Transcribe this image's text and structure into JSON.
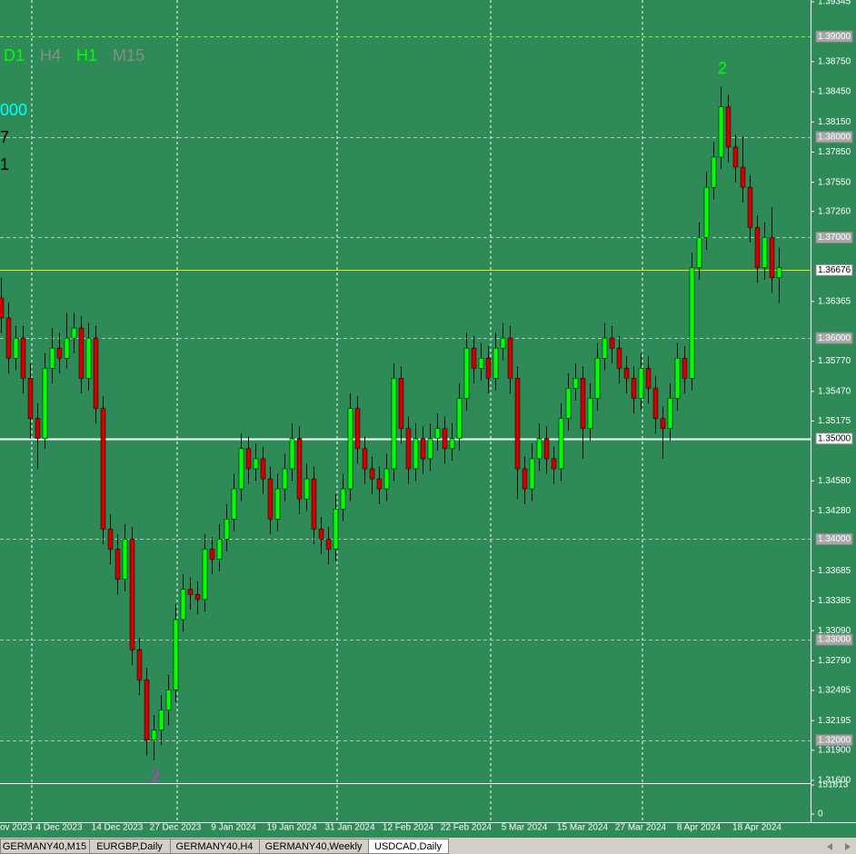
{
  "chart_data": {
    "type": "candlestick",
    "timeframes": [
      {
        "text": "D1",
        "color": "#00ff00"
      },
      {
        "text": "H4",
        "color": "#8a8a8a"
      },
      {
        "text": "H1",
        "color": "#00ff00"
      },
      {
        "text": "M15",
        "color": "#8a8a8a"
      }
    ],
    "side_texts": [
      {
        "text": "000",
        "color": "#00ffff"
      },
      {
        "text": "7",
        "color": "#000000"
      },
      {
        "text": "1",
        "color": "#000000"
      }
    ],
    "annotations": [
      {
        "text": "2",
        "color": "#00ff00"
      },
      {
        "text": "2",
        "color": "#cc33cc"
      }
    ],
    "categories": [
      "ov 2023",
      null,
      null,
      null,
      null,
      null,
      null,
      null,
      "4 Dec 2023",
      null,
      null,
      null,
      null,
      null,
      null,
      null,
      "14 Dec 2023",
      null,
      null,
      null,
      null,
      null,
      null,
      null,
      "27 Dec 2023",
      null,
      null,
      null,
      null,
      null,
      null,
      null,
      "9 Jan 2024",
      null,
      null,
      null,
      null,
      null,
      null,
      null,
      "19 Jan 2024",
      null,
      null,
      null,
      null,
      null,
      null,
      null,
      "31 Jan 2024",
      null,
      null,
      null,
      null,
      null,
      null,
      null,
      "12 Feb 2024",
      null,
      null,
      null,
      null,
      null,
      null,
      null,
      "22 Feb 2024",
      null,
      null,
      null,
      null,
      null,
      null,
      null,
      "5 Mar 2024",
      null,
      null,
      null,
      null,
      null,
      null,
      null,
      "15 Mar 2024",
      null,
      null,
      null,
      null,
      null,
      null,
      null,
      "27 Mar 2024",
      null,
      null,
      null,
      null,
      null,
      null,
      null,
      "8 Apr 2024",
      null,
      null,
      null,
      null,
      null,
      null,
      null,
      "18 Apr 2024",
      null,
      null,
      null
    ],
    "ohlc": [
      [
        1.364,
        1.366,
        1.3605,
        1.362
      ],
      [
        1.362,
        1.3635,
        1.3565,
        1.358
      ],
      [
        1.358,
        1.3612,
        1.3568,
        1.36
      ],
      [
        1.36,
        1.3612,
        1.3545,
        1.356
      ],
      [
        1.356,
        1.3575,
        1.35,
        1.352
      ],
      [
        1.352,
        1.3535,
        1.347,
        1.35
      ],
      [
        1.35,
        1.3585,
        1.349,
        1.357
      ],
      [
        1.357,
        1.361,
        1.3555,
        1.359
      ],
      [
        1.359,
        1.3605,
        1.3565,
        1.358
      ],
      [
        1.358,
        1.3625,
        1.357,
        1.36
      ],
      [
        1.36,
        1.3625,
        1.3585,
        1.361
      ],
      [
        1.361,
        1.3622,
        1.3545,
        1.356
      ],
      [
        1.356,
        1.3615,
        1.3548,
        1.36
      ],
      [
        1.36,
        1.3612,
        1.3515,
        1.353
      ],
      [
        1.353,
        1.3542,
        1.3395,
        1.341
      ],
      [
        1.341,
        1.3425,
        1.3375,
        1.339
      ],
      [
        1.339,
        1.3405,
        1.3345,
        1.336
      ],
      [
        1.336,
        1.3415,
        1.3348,
        1.34
      ],
      [
        1.34,
        1.3412,
        1.3275,
        1.329
      ],
      [
        1.329,
        1.3302,
        1.3245,
        1.326
      ],
      [
        1.326,
        1.3272,
        1.3185,
        1.32
      ],
      [
        1.32,
        1.3225,
        1.318,
        1.321
      ],
      [
        1.321,
        1.3245,
        1.3195,
        1.323
      ],
      [
        1.323,
        1.3265,
        1.3215,
        1.325
      ],
      [
        1.325,
        1.3335,
        1.3238,
        1.332
      ],
      [
        1.332,
        1.3365,
        1.3308,
        1.335
      ],
      [
        1.335,
        1.3362,
        1.333,
        1.3345
      ],
      [
        1.3345,
        1.3358,
        1.3325,
        1.334
      ],
      [
        1.334,
        1.3405,
        1.3328,
        1.339
      ],
      [
        1.339,
        1.3402,
        1.3365,
        1.338
      ],
      [
        1.338,
        1.3415,
        1.3368,
        1.34
      ],
      [
        1.34,
        1.3435,
        1.3388,
        1.342
      ],
      [
        1.342,
        1.3465,
        1.3408,
        1.345
      ],
      [
        1.345,
        1.3505,
        1.3438,
        1.349
      ],
      [
        1.349,
        1.3502,
        1.3455,
        1.347
      ],
      [
        1.347,
        1.3495,
        1.3458,
        1.348
      ],
      [
        1.348,
        1.3492,
        1.3445,
        1.346
      ],
      [
        1.346,
        1.3472,
        1.3405,
        1.342
      ],
      [
        1.342,
        1.3465,
        1.3408,
        1.345
      ],
      [
        1.345,
        1.3485,
        1.3438,
        1.347
      ],
      [
        1.347,
        1.3515,
        1.3458,
        1.35
      ],
      [
        1.35,
        1.3512,
        1.3425,
        1.344
      ],
      [
        1.344,
        1.3475,
        1.3428,
        1.346
      ],
      [
        1.346,
        1.3472,
        1.3395,
        1.341
      ],
      [
        1.341,
        1.3422,
        1.3385,
        1.34
      ],
      [
        1.34,
        1.3412,
        1.3375,
        1.339
      ],
      [
        1.339,
        1.3445,
        1.3378,
        1.343
      ],
      [
        1.343,
        1.3465,
        1.3418,
        1.345
      ],
      [
        1.345,
        1.3545,
        1.3438,
        1.353
      ],
      [
        1.353,
        1.3542,
        1.3475,
        1.349
      ],
      [
        1.349,
        1.3502,
        1.3455,
        1.347
      ],
      [
        1.347,
        1.3482,
        1.3445,
        1.346
      ],
      [
        1.346,
        1.3472,
        1.3435,
        1.345
      ],
      [
        1.345,
        1.3485,
        1.3438,
        1.347
      ],
      [
        1.347,
        1.3575,
        1.3458,
        1.356
      ],
      [
        1.356,
        1.3572,
        1.3495,
        1.351
      ],
      [
        1.351,
        1.3522,
        1.3455,
        1.347
      ],
      [
        1.347,
        1.3515,
        1.3458,
        1.35
      ],
      [
        1.35,
        1.3512,
        1.3465,
        1.348
      ],
      [
        1.348,
        1.3515,
        1.3468,
        1.35
      ],
      [
        1.35,
        1.3525,
        1.3488,
        1.351
      ],
      [
        1.351,
        1.3522,
        1.3475,
        1.349
      ],
      [
        1.349,
        1.3515,
        1.3478,
        1.35
      ],
      [
        1.35,
        1.3555,
        1.3488,
        1.354
      ],
      [
        1.354,
        1.3605,
        1.3528,
        1.359
      ],
      [
        1.359,
        1.3602,
        1.3555,
        1.357
      ],
      [
        1.357,
        1.3595,
        1.3558,
        1.358
      ],
      [
        1.358,
        1.3592,
        1.3545,
        1.356
      ],
      [
        1.356,
        1.3605,
        1.3548,
        1.359
      ],
      [
        1.359,
        1.3615,
        1.3578,
        1.36
      ],
      [
        1.36,
        1.3612,
        1.3545,
        1.356
      ],
      [
        1.356,
        1.3572,
        1.344,
        1.347
      ],
      [
        1.347,
        1.3482,
        1.3435,
        1.345
      ],
      [
        1.345,
        1.3495,
        1.3438,
        1.348
      ],
      [
        1.348,
        1.3515,
        1.3468,
        1.35
      ],
      [
        1.35,
        1.3512,
        1.3465,
        1.348
      ],
      [
        1.348,
        1.3492,
        1.3455,
        1.347
      ],
      [
        1.347,
        1.3535,
        1.3458,
        1.352
      ],
      [
        1.352,
        1.3565,
        1.3508,
        1.355
      ],
      [
        1.355,
        1.3575,
        1.3538,
        1.356
      ],
      [
        1.356,
        1.3572,
        1.348,
        1.351
      ],
      [
        1.351,
        1.3555,
        1.3498,
        1.354
      ],
      [
        1.354,
        1.3595,
        1.3528,
        1.358
      ],
      [
        1.358,
        1.3615,
        1.3568,
        1.36
      ],
      [
        1.36,
        1.3612,
        1.3575,
        1.359
      ],
      [
        1.359,
        1.3602,
        1.3555,
        1.357
      ],
      [
        1.357,
        1.3582,
        1.3545,
        1.356
      ],
      [
        1.356,
        1.3572,
        1.3525,
        1.354
      ],
      [
        1.354,
        1.3585,
        1.3528,
        1.357
      ],
      [
        1.357,
        1.3582,
        1.3535,
        1.355
      ],
      [
        1.355,
        1.3562,
        1.3505,
        1.352
      ],
      [
        1.352,
        1.3532,
        1.348,
        1.351
      ],
      [
        1.351,
        1.3555,
        1.3498,
        1.354
      ],
      [
        1.354,
        1.3595,
        1.3528,
        1.358
      ],
      [
        1.358,
        1.3592,
        1.3545,
        1.356
      ],
      [
        1.356,
        1.3685,
        1.3548,
        1.367
      ],
      [
        1.367,
        1.3715,
        1.3658,
        1.37
      ],
      [
        1.37,
        1.3765,
        1.3688,
        1.375
      ],
      [
        1.375,
        1.3795,
        1.3738,
        1.378
      ],
      [
        1.378,
        1.385,
        1.3768,
        1.383
      ],
      [
        1.383,
        1.3842,
        1.3775,
        1.379
      ],
      [
        1.379,
        1.3802,
        1.3755,
        1.377
      ],
      [
        1.377,
        1.38,
        1.3735,
        1.375
      ],
      [
        1.375,
        1.3762,
        1.3695,
        1.371
      ],
      [
        1.371,
        1.3722,
        1.3655,
        1.367
      ],
      [
        1.367,
        1.3715,
        1.3658,
        1.37
      ],
      [
        1.37,
        1.373,
        1.3645,
        1.366
      ],
      [
        1.366,
        1.369,
        1.3635,
        1.367
      ]
    ],
    "up_color": "#00ff00",
    "down_color": "#cc0000",
    "ylim": [
      1.316,
      1.39345
    ],
    "yticks": [
      1.39345,
      {
        "value": 1.3875,
        "label": "1.38750"
      },
      {
        "value": 1.3845,
        "label": "1.38450"
      },
      {
        "value": 1.3815,
        "label": "1.38150"
      },
      {
        "value": 1.3785,
        "label": "1.37850"
      },
      {
        "value": 1.3755,
        "label": "1.37550"
      },
      {
        "value": 1.3726,
        "label": "1.37260"
      },
      1.36365,
      {
        "value": 1.3577,
        "label": "1.35770"
      },
      {
        "value": 1.3547,
        "label": "1.35470"
      },
      1.35175,
      {
        "value": 1.3458,
        "label": "1.34580"
      },
      {
        "value": 1.3428,
        "label": "1.34280"
      },
      1.33685,
      1.33385,
      {
        "value": 1.3309,
        "label": "1.33090"
      },
      {
        "value": 1.3279,
        "label": "1.32790"
      },
      1.32495,
      1.32195,
      {
        "value": 1.319,
        "label": "1.31900"
      },
      {
        "value": 1.316,
        "label": "1.31600"
      }
    ],
    "levels": [
      {
        "value": 1.39,
        "label": "1.39000",
        "color": "#7cfc00",
        "box": "#a8a8a8"
      },
      {
        "value": 1.38,
        "label": "1.38000",
        "color": "#c0c0c0",
        "box": "#a8a8a8"
      },
      {
        "value": 1.37,
        "label": "1.37000",
        "color": "#c0c0c0",
        "box": "#a8a8a8"
      },
      {
        "value": 1.36676,
        "label": "1.36676",
        "color": "#e6e600",
        "box": "#ffffff"
      },
      {
        "value": 1.36,
        "label": "1.36000",
        "color": "#c0c0c0",
        "box": "#a8a8a8"
      },
      {
        "value": 1.35,
        "label": "1.35000",
        "color": "#ffffff",
        "box": "#ffffff"
      },
      {
        "value": 1.34,
        "label": "1.34000",
        "color": "#c0c0c0",
        "box": "#a8a8a8"
      },
      {
        "value": 1.33,
        "label": "1.33000",
        "color": "#c0c0c0",
        "box": "#a8a8a8"
      },
      {
        "value": 1.32,
        "label": "1.32000",
        "color": "#c0c0c0",
        "box": "#a8a8a8"
      }
    ],
    "volume_ylim": [
      0,
      151813
    ],
    "volume_yticks": [
      0,
      151813
    ]
  },
  "tabs": [
    {
      "label": "GERMANY40,M15",
      "active": false
    },
    {
      "label": "EURGBP,Daily",
      "active": false
    },
    {
      "label": "GERMANY40,H4",
      "active": false
    },
    {
      "label": "GERMANY40,Weekly",
      "active": false
    },
    {
      "label": "USDCAD,Daily",
      "active": true
    }
  ]
}
